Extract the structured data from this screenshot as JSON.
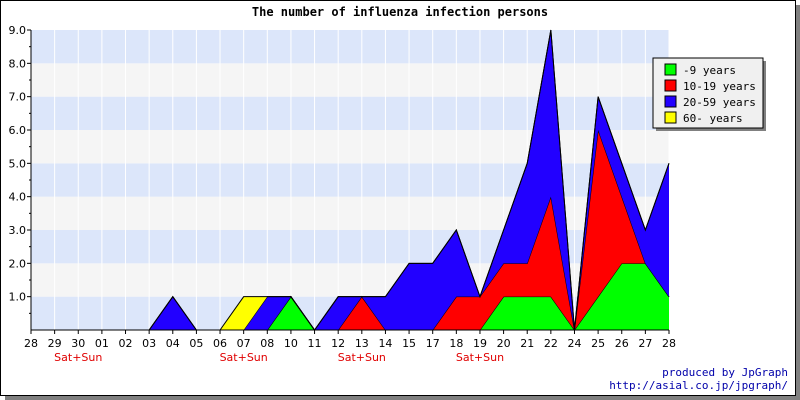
{
  "chart_data": {
    "type": "area",
    "stacked": true,
    "title": "The number of influenza infection persons",
    "xlabel": "",
    "ylabel": "",
    "ylim": [
      0,
      9
    ],
    "yticks": [
      "1.0",
      "2.0",
      "3.0",
      "4.0",
      "5.0",
      "6.0",
      "7.0",
      "8.0",
      "9.0"
    ],
    "categories": [
      "28",
      "29",
      "30",
      "01",
      "02",
      "03",
      "04",
      "05",
      "06",
      "07",
      "08",
      "10",
      "11",
      "12",
      "13",
      "14",
      "15",
      "17",
      "18",
      "19",
      "20",
      "21",
      "22",
      "24",
      "25",
      "26",
      "27",
      "28"
    ],
    "weekend_labels": [
      {
        "index": 2,
        "text": "Sat+Sun"
      },
      {
        "index": 9,
        "text": "Sat+Sun"
      },
      {
        "index": 14,
        "text": "Sat+Sun"
      },
      {
        "index": 19,
        "text": "Sat+Sun"
      }
    ],
    "series": [
      {
        "name": "-9 years",
        "color": "#00ff00",
        "values": [
          0,
          0,
          0,
          0,
          0,
          0,
          0,
          0,
          0,
          0,
          0,
          1,
          0,
          0,
          0,
          0,
          0,
          0,
          0,
          0,
          1,
          1,
          1,
          0,
          1,
          2,
          2,
          1
        ]
      },
      {
        "name": "10-19 years",
        "color": "#ff0000",
        "values": [
          0,
          0,
          0,
          0,
          0,
          0,
          0,
          0,
          0,
          0,
          0,
          0,
          0,
          0,
          1,
          0,
          0,
          0,
          1,
          1,
          1,
          1,
          3,
          0,
          5,
          2,
          0,
          0
        ]
      },
      {
        "name": "20-59 years",
        "color": "#2200ff",
        "values": [
          0,
          0,
          0,
          0,
          0,
          0,
          1,
          0,
          0,
          0,
          1,
          0,
          0,
          1,
          0,
          1,
          2,
          2,
          2,
          0,
          1,
          3,
          5,
          0,
          1,
          1,
          1,
          4
        ]
      },
      {
        "name": "60- years",
        "color": "#ffff00",
        "values": [
          0,
          0,
          0,
          0,
          0,
          0,
          0,
          0,
          0,
          1,
          0,
          0,
          0,
          0,
          0,
          0,
          0,
          0,
          0,
          0,
          0,
          0,
          0,
          0,
          0,
          0,
          0,
          0
        ]
      }
    ],
    "grid": true,
    "legend_position": "top-right"
  },
  "credits": {
    "line1": "produced by JpGraph",
    "line2": "http://asial.co.jp/jpgraph/"
  }
}
